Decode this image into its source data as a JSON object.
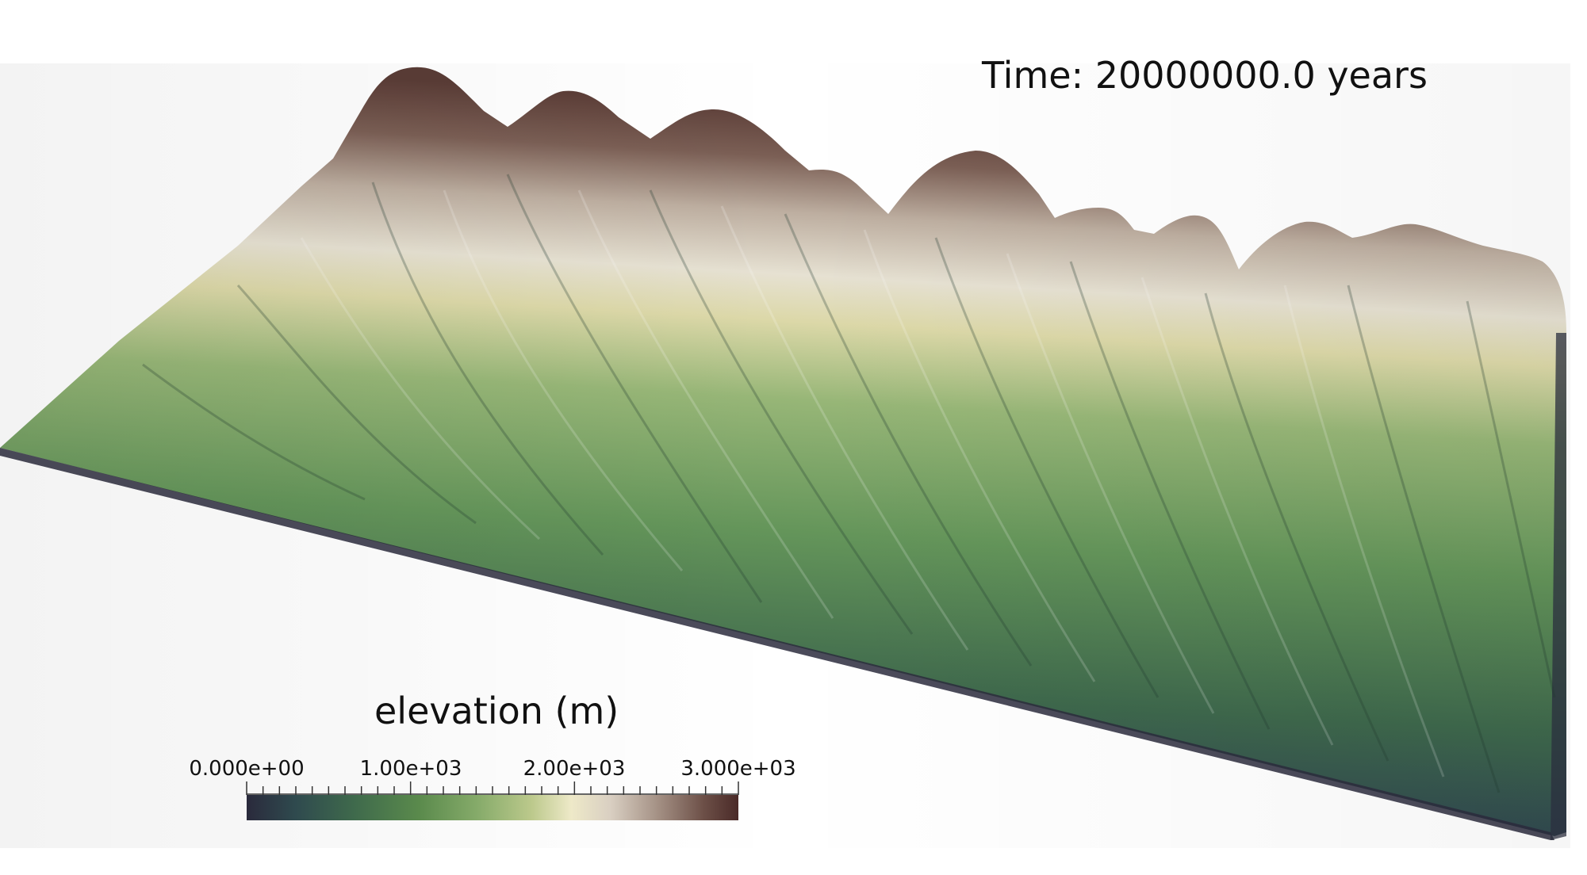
{
  "time_label": "Time: 20000000.0 years",
  "colorbar": {
    "title": "elevation (m)",
    "tick_labels": [
      "0.000e+00",
      "1.00e+03",
      "2.00e+03",
      "3.000e+03"
    ],
    "range": [
      0,
      3000
    ],
    "colormap": [
      "#2a2a3c",
      "#2f4a4e",
      "#3f6a4c",
      "#5a8a4c",
      "#86ab6a",
      "#bcc98c",
      "#eee9c8",
      "#d9cfc2",
      "#a28e82",
      "#6c4f47",
      "#4a2a28"
    ]
  },
  "terrain": {
    "colors": {
      "low": "#2a2a3c",
      "mid_low": "#3f6a4c",
      "mid": "#6a9a5c",
      "high_mid": "#d9d6a6",
      "ridge": "#e8e3d8",
      "peak": "#6a4a44"
    }
  }
}
